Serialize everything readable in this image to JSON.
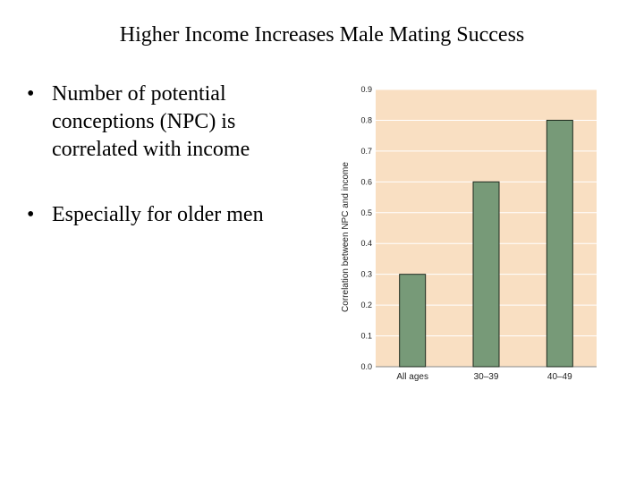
{
  "slide": {
    "title": "Higher Income Increases Male Mating Success",
    "bullets": [
      "Number of potential conceptions (NPC) is correlated with income",
      "Especially for older men"
    ]
  },
  "chart_data": {
    "type": "bar",
    "categories": [
      "All ages",
      "30–39",
      "40–49"
    ],
    "values": [
      0.3,
      0.6,
      0.8
    ],
    "title": "",
    "xlabel": "",
    "ylabel": "Correlation between NPC and income",
    "ylim": [
      0,
      0.9
    ],
    "yticks": [
      "0.0",
      "0.1",
      "0.2",
      "0.3",
      "0.4",
      "0.5",
      "0.6",
      "0.7",
      "0.8",
      "0.9"
    ],
    "grid": true,
    "colors": {
      "background": "#f9dfc2",
      "bar": "#779a78",
      "bar_edge": "#1e2a1e",
      "grid": "#ffffff"
    }
  }
}
